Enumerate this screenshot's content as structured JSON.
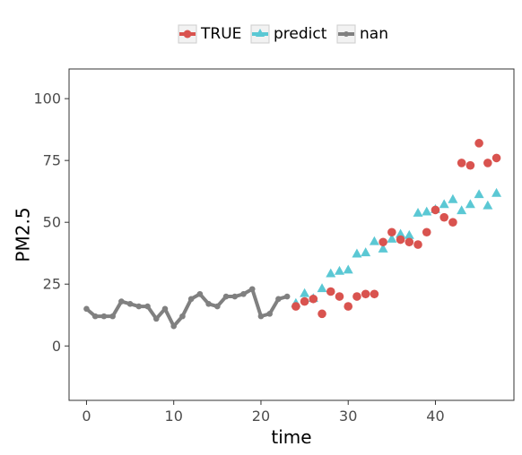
{
  "chart_data": {
    "type": "scatter",
    "xlabel": "time",
    "ylabel": "PM2.5",
    "xlim": [
      -2,
      49
    ],
    "ylim": [
      -22,
      112
    ],
    "xticks": [
      0,
      10,
      20,
      30,
      40
    ],
    "yticks": [
      0,
      25,
      50,
      75,
      100
    ],
    "grid": false,
    "legend_position": "top",
    "series": [
      {
        "name": "TRUE",
        "style": "points",
        "marker": "circle",
        "color": "#d9534f",
        "x": [
          24,
          25,
          26,
          27,
          28,
          29,
          30,
          31,
          32,
          33,
          34,
          35,
          36,
          37,
          38,
          39,
          40,
          41,
          42,
          43,
          44,
          45,
          46,
          47
        ],
        "y": [
          16,
          18,
          19,
          13,
          22,
          20,
          16,
          20,
          21,
          21,
          42,
          46,
          43,
          42,
          41,
          46,
          55,
          52,
          50,
          74,
          73,
          82,
          74,
          76
        ]
      },
      {
        "name": "predict",
        "style": "points",
        "marker": "triangle",
        "color": "#5bc8d4",
        "x": [
          24,
          25,
          26,
          27,
          28,
          29,
          30,
          31,
          32,
          33,
          34,
          35,
          36,
          37,
          38,
          39,
          40,
          41,
          42,
          43,
          44,
          45,
          46,
          47
        ],
        "y": [
          17,
          21,
          19,
          23,
          29,
          30,
          30.5,
          37,
          37.5,
          42,
          39,
          43,
          45,
          44.5,
          53.5,
          54,
          55,
          57,
          59,
          54.5,
          57,
          61,
          56.5,
          61.5
        ]
      },
      {
        "name": "nan",
        "style": "line-points",
        "marker": "circle",
        "color": "#808080",
        "x": [
          0,
          1,
          2,
          3,
          4,
          5,
          6,
          7,
          8,
          9,
          10,
          11,
          12,
          13,
          14,
          15,
          16,
          17,
          18,
          19,
          20,
          21,
          22,
          23
        ],
        "y": [
          15,
          12,
          12,
          12,
          18,
          17,
          16,
          16,
          11,
          15,
          8,
          12,
          19,
          21,
          17,
          16,
          20,
          20,
          21,
          23,
          12,
          13,
          19,
          20
        ]
      }
    ]
  }
}
